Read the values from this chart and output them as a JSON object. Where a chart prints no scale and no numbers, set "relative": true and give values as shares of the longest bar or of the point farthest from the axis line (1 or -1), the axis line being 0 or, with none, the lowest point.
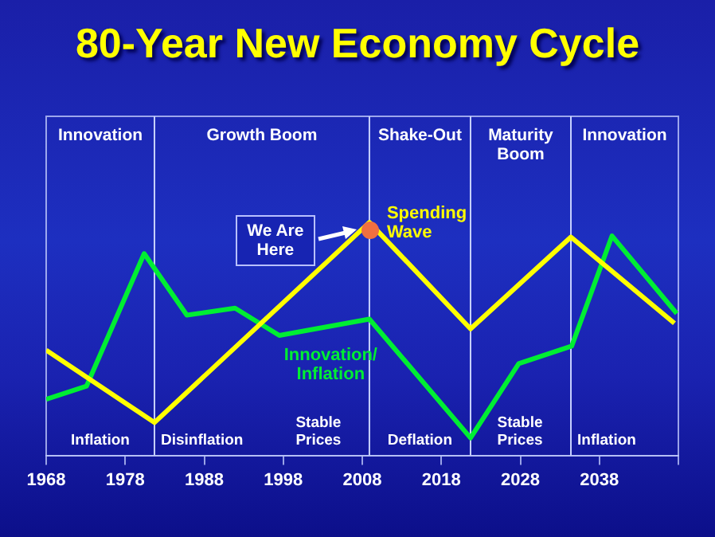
{
  "chart_data": {
    "type": "line",
    "title": "80-Year New Economy Cycle",
    "relative": true,
    "xlim": [
      1968,
      2048
    ],
    "xticks": [
      1968,
      1978,
      1988,
      1998,
      2008,
      2018,
      2028,
      2038,
      {
        "value": 2048,
        "label": null
      }
    ],
    "grid": false,
    "legend": false,
    "marker": "none",
    "line_style": "solid",
    "tick_labels": "x",
    "series": [
      {
        "name": "Spending Wave",
        "color": "#ffff00",
        "x": [
          1968,
          1981.7,
          2008.9,
          2021.7,
          2034.4,
          2047.5
        ],
        "values": [
          0.452,
          0.141,
          1,
          0.543,
          0.937,
          0.567
        ]
      },
      {
        "name": "Innovation/ Inflation",
        "color": "#00ee33",
        "x": [
          1968,
          1973.1,
          1980.4,
          1985.8,
          1991.9,
          1997.5,
          2008.9,
          2021.7,
          2027.8,
          2034.5,
          2039.6,
          2047.8
        ],
        "values": [
          0.241,
          0.297,
          0.866,
          0.602,
          0.632,
          0.515,
          0.585,
          0.075,
          0.394,
          0.469,
          0.942,
          0.609
        ]
      }
    ],
    "ref_lines": [
      {
        "axis": "x",
        "value": 1981.7,
        "color": "#c8d2ff"
      },
      {
        "axis": "x",
        "value": 2008.9,
        "color": "#c8d2ff"
      },
      {
        "axis": "x",
        "value": 2021.7,
        "color": "#c8d2ff"
      },
      {
        "axis": "x",
        "value": 2034.4,
        "color": "#c8d2ff"
      }
    ],
    "annotations": [
      "We Are Here",
      "Innovation",
      "Growth Boom",
      "Shake-Out",
      "Maturity Boom",
      "Innovation",
      "Inflation",
      "Disinflation",
      "Stable Prices",
      "Deflation",
      "Stable Prices",
      "Inflation"
    ]
  }
}
